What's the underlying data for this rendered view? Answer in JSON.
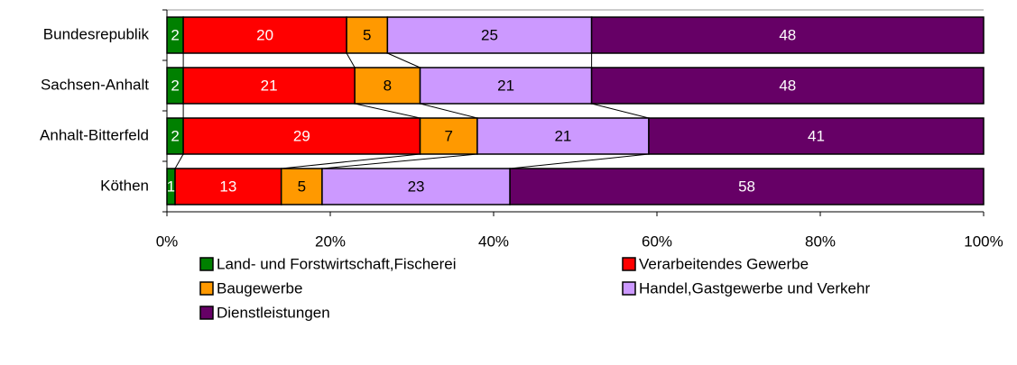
{
  "chart_data": {
    "type": "bar",
    "orientation": "horizontal",
    "stacked": true,
    "categories": [
      "Bundesrepublik",
      "Sachsen-Anhalt",
      "Anhalt-Bitterfeld",
      "Köthen"
    ],
    "series": [
      {
        "name": "Land- und Forstwirtschaft,Fischerei",
        "color": "#008000",
        "values": [
          2,
          2,
          2,
          1
        ]
      },
      {
        "name": "Verarbeitendes Gewerbe",
        "color": "#ff0000",
        "values": [
          20,
          21,
          29,
          13
        ]
      },
      {
        "name": "Baugewerbe",
        "color": "#ff9900",
        "values": [
          5,
          8,
          7,
          5
        ]
      },
      {
        "name": "Handel,Gastgewerbe und Verkehr",
        "color": "#cc99ff",
        "values": [
          25,
          21,
          21,
          23
        ]
      },
      {
        "name": "Dienstleistungen",
        "color": "#660066",
        "values": [
          48,
          48,
          41,
          58
        ]
      }
    ],
    "xlim": [
      0,
      100
    ],
    "xticks": [
      {
        "value": 0,
        "label": "0%"
      },
      {
        "value": 20,
        "label": "20%"
      },
      {
        "value": 40,
        "label": "40%"
      },
      {
        "value": 60,
        "label": "60%"
      },
      {
        "value": 80,
        "label": "80%"
      },
      {
        "value": 100,
        "label": "100%"
      }
    ],
    "series_lines": true,
    "legend": "bottom"
  }
}
